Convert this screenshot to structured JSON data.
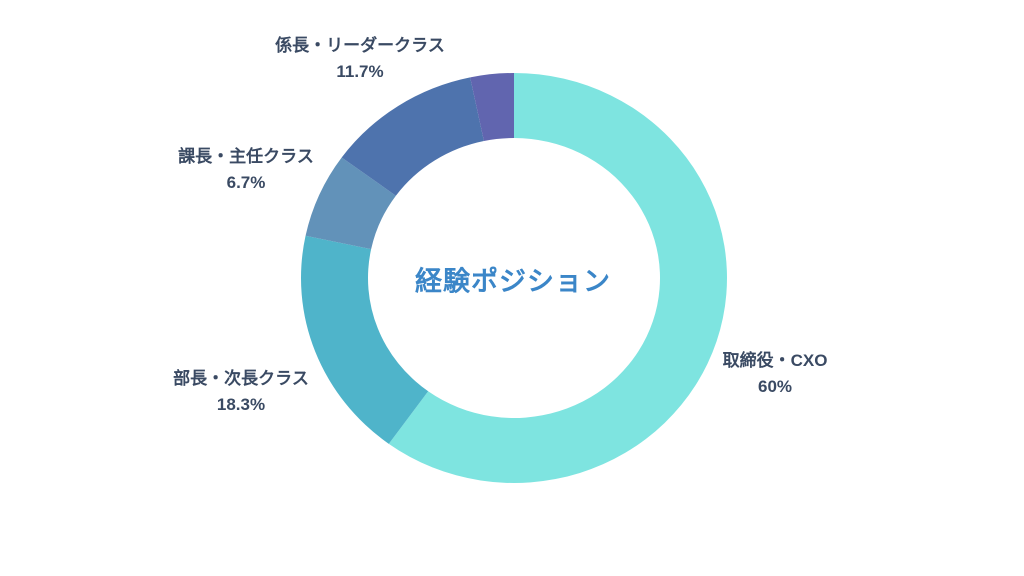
{
  "page": {
    "background_color": "#ffffff"
  },
  "chart_data": {
    "type": "pie",
    "variant": "donut",
    "title": "経験ポジション",
    "title_color": "#3B86C8",
    "label_color": "#3A4A63",
    "direction": "clockwise",
    "start_angle_deg": 0,
    "legend_position": "outside-labels",
    "segments": [
      {
        "label": "取締役・CXO",
        "percent_label": "60%",
        "value": 60,
        "color": "#7EE4E0"
      },
      {
        "label": "部長・次長クラス",
        "percent_label": "18.3%",
        "value": 18.3,
        "color": "#4FB4CA"
      },
      {
        "label": "課長・主任クラス",
        "percent_label": "6.7%",
        "value": 6.7,
        "color": "#6292B9"
      },
      {
        "label": "係長・リーダークラス",
        "percent_label": "11.7%",
        "value": 11.7,
        "color": "#4E73AD"
      },
      {
        "label": "",
        "percent_label": "",
        "value": 3.3,
        "color": "#6165AF"
      }
    ]
  }
}
